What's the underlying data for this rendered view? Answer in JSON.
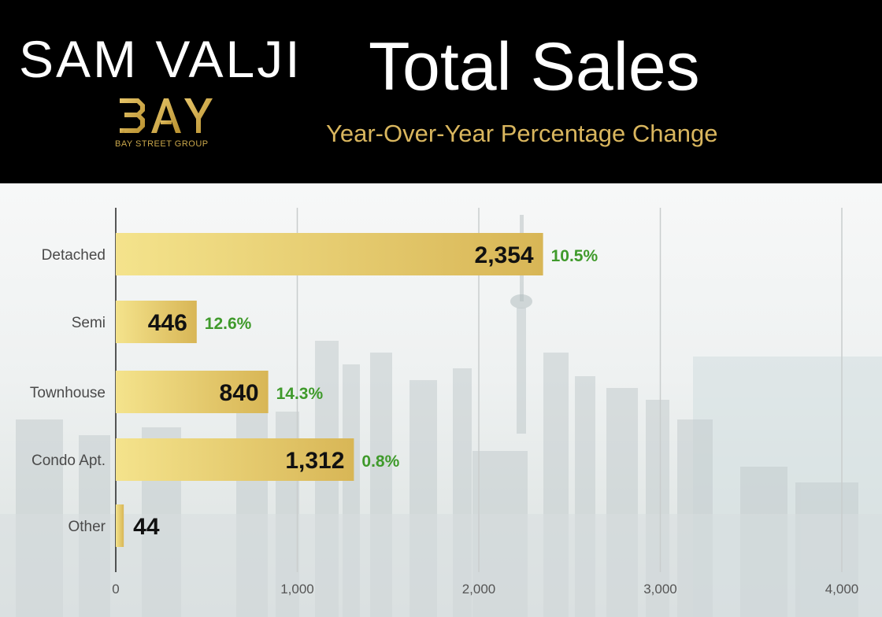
{
  "header": {
    "brand_name": "SAM VALJI",
    "logo_text": "BAY",
    "logo_subtext": "BAY STREET GROUP",
    "title": "Total Sales",
    "subtitle": "Year-Over-Year Percentage Change"
  },
  "colors": {
    "header_bg": "#000000",
    "title": "#ffffff",
    "subtitle": "#d9b65e",
    "bar_light": "#f4e38c",
    "bar_dark": "#d8b656",
    "change_positive": "#3f9a2b"
  },
  "chart_data": {
    "type": "bar",
    "orientation": "horizontal",
    "categories": [
      "Detached",
      "Semi",
      "Townhouse",
      "Condo Apt.",
      "Other"
    ],
    "values": [
      2354,
      446,
      840,
      1312,
      44
    ],
    "value_labels": [
      "2,354",
      "446",
      "840",
      "1,312",
      "44"
    ],
    "changes": [
      "10.5%",
      "12.6%",
      "14.3%",
      "0.8%",
      ""
    ],
    "xlim": [
      0,
      4000
    ],
    "xticks": [
      0,
      1000,
      2000,
      3000,
      4000
    ],
    "xtick_labels": [
      "0",
      "1,000",
      "2,000",
      "3,000",
      "4,000"
    ],
    "title": "Total Sales",
    "subtitle": "Year-Over-Year Percentage Change",
    "xlabel": "",
    "ylabel": "",
    "grid": "vertical"
  }
}
